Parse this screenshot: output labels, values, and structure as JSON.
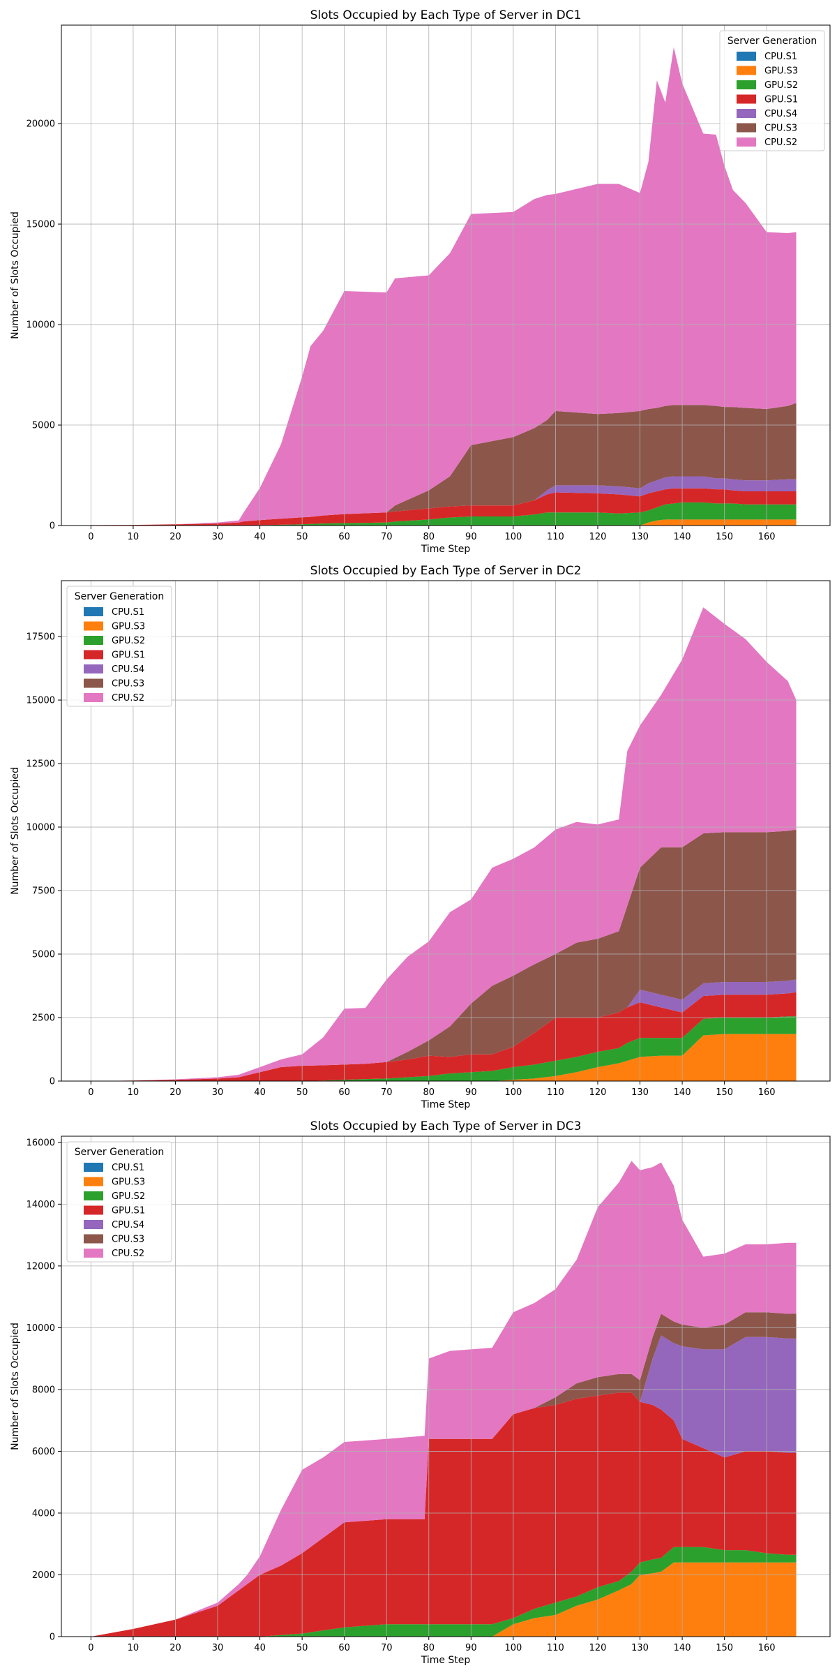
{
  "series_colors": {
    "CPU.S1": "#1f77b4",
    "GPU.S3": "#ff7f0e",
    "GPU.S2": "#2ca02c",
    "GPU.S1": "#d62728",
    "CPU.S4": "#9467bd",
    "CPU.S3": "#8c564b",
    "CPU.S2": "#e377c2"
  },
  "chart_data": [
    {
      "type": "area",
      "stacked": true,
      "title": "Slots Occupied by Each Type of Server in DC1",
      "xlabel": "Time Step",
      "ylabel": "Number of Slots Occupied",
      "xlim": [
        -7,
        175
      ],
      "ylim": [
        0,
        24900
      ],
      "xticks": [
        0,
        10,
        20,
        30,
        40,
        50,
        60,
        70,
        80,
        90,
        100,
        110,
        120,
        130,
        140,
        150,
        160
      ],
      "yticks": [
        0,
        5000,
        10000,
        15000,
        20000
      ],
      "grid": true,
      "legend": {
        "title": "Server Generation",
        "placement": "upper right"
      },
      "x": [
        0,
        10,
        20,
        30,
        35,
        36,
        40,
        45,
        50,
        52,
        55,
        60,
        70,
        72,
        80,
        85,
        90,
        100,
        105,
        108,
        110,
        120,
        125,
        130,
        132,
        134,
        136,
        138,
        140,
        145,
        148,
        150,
        152,
        155,
        160,
        165,
        167
      ],
      "series": [
        {
          "name": "CPU.S1",
          "values": [
            0,
            0,
            0,
            0,
            0,
            0,
            0,
            0,
            0,
            0,
            0,
            0,
            0,
            0,
            0,
            0,
            0,
            0,
            0,
            0,
            0,
            0,
            0,
            0,
            0,
            0,
            0,
            0,
            0,
            0,
            0,
            0,
            0,
            0,
            0,
            0,
            0
          ]
        },
        {
          "name": "GPU.S3",
          "values": [
            0,
            0,
            0,
            0,
            0,
            0,
            0,
            0,
            0,
            0,
            0,
            0,
            0,
            0,
            0,
            0,
            0,
            0,
            0,
            0,
            0,
            0,
            0,
            0,
            150,
            250,
            300,
            300,
            300,
            300,
            300,
            300,
            300,
            300,
            300,
            300,
            300
          ]
        },
        {
          "name": "GPU.S2",
          "values": [
            0,
            0,
            0,
            0,
            0,
            0,
            20,
            40,
            60,
            80,
            100,
            120,
            150,
            200,
            300,
            400,
            450,
            450,
            550,
            650,
            650,
            650,
            600,
            650,
            600,
            650,
            750,
            800,
            850,
            850,
            800,
            800,
            800,
            750,
            750,
            750,
            750
          ]
        },
        {
          "name": "GPU.S1",
          "values": [
            20,
            30,
            60,
            100,
            150,
            200,
            250,
            300,
            350,
            350,
            400,
            450,
            500,
            500,
            550,
            550,
            550,
            550,
            700,
            900,
            1000,
            950,
            950,
            800,
            850,
            800,
            750,
            750,
            700,
            700,
            700,
            700,
            650,
            650,
            650,
            650,
            650
          ]
        },
        {
          "name": "CPU.S4",
          "values": [
            0,
            0,
            0,
            0,
            0,
            0,
            0,
            0,
            0,
            0,
            0,
            0,
            0,
            0,
            0,
            0,
            0,
            0,
            0,
            200,
            350,
            400,
            400,
            400,
            500,
            550,
            600,
            600,
            600,
            600,
            550,
            550,
            550,
            550,
            550,
            600,
            600
          ]
        },
        {
          "name": "CPU.S3",
          "values": [
            0,
            0,
            0,
            0,
            0,
            0,
            0,
            0,
            0,
            0,
            0,
            0,
            0,
            300,
            900,
            1500,
            3000,
            3400,
            3600,
            3500,
            3700,
            3550,
            3650,
            3850,
            3700,
            3600,
            3550,
            3550,
            3550,
            3550,
            3600,
            3550,
            3600,
            3600,
            3550,
            3650,
            3800
          ]
        },
        {
          "name": "CPU.S2",
          "values": [
            0,
            0,
            0,
            50,
            100,
            400,
            1600,
            3700,
            7000,
            8500,
            9200,
            11100,
            10950,
            11300,
            10700,
            11100,
            11500,
            11200,
            11400,
            11200,
            10800,
            11450,
            11400,
            10850,
            12300,
            16300,
            15100,
            17800,
            16000,
            13500,
            13500,
            12000,
            10800,
            10200,
            8800,
            8600,
            8500
          ]
        }
      ]
    },
    {
      "type": "area",
      "stacked": true,
      "title": "Slots Occupied by Each Type of Server in DC2",
      "xlabel": "Time Step",
      "ylabel": "Number of Slots Occupied",
      "xlim": [
        -7,
        175
      ],
      "ylim": [
        0,
        19700
      ],
      "xticks": [
        0,
        10,
        20,
        30,
        40,
        50,
        60,
        70,
        80,
        90,
        100,
        110,
        120,
        130,
        140,
        150,
        160
      ],
      "yticks": [
        0,
        2500,
        5000,
        7500,
        10000,
        12500,
        15000,
        17500
      ],
      "grid": true,
      "legend": {
        "title": "Server Generation",
        "placement": "upper left"
      },
      "x": [
        0,
        10,
        20,
        30,
        35,
        40,
        45,
        50,
        55,
        60,
        65,
        70,
        75,
        80,
        85,
        90,
        95,
        100,
        105,
        110,
        115,
        120,
        125,
        127,
        130,
        135,
        140,
        145,
        150,
        155,
        160,
        165,
        167
      ],
      "series": [
        {
          "name": "CPU.S1",
          "values": [
            0,
            0,
            0,
            0,
            0,
            0,
            0,
            0,
            0,
            0,
            0,
            0,
            0,
            0,
            0,
            0,
            0,
            0,
            0,
            0,
            0,
            0,
            0,
            0,
            0,
            0,
            0,
            0,
            0,
            0,
            0,
            0,
            0
          ]
        },
        {
          "name": "GPU.S3",
          "values": [
            0,
            0,
            0,
            0,
            0,
            0,
            0,
            0,
            0,
            0,
            0,
            0,
            0,
            0,
            0,
            0,
            0,
            50,
            100,
            200,
            350,
            550,
            700,
            800,
            950,
            1000,
            1000,
            1800,
            1850,
            1850,
            1850,
            1850,
            1850
          ]
        },
        {
          "name": "GPU.S2",
          "values": [
            0,
            0,
            0,
            0,
            0,
            0,
            0,
            0,
            20,
            50,
            80,
            100,
            150,
            200,
            300,
            350,
            400,
            500,
            550,
            600,
            600,
            600,
            600,
            700,
            750,
            700,
            700,
            650,
            650,
            650,
            650,
            700,
            700
          ]
        },
        {
          "name": "GPU.S1",
          "values": [
            0,
            20,
            50,
            100,
            150,
            350,
            550,
            600,
            600,
            600,
            600,
            650,
            700,
            800,
            650,
            700,
            650,
            800,
            1250,
            1700,
            1550,
            1350,
            1400,
            1400,
            1400,
            1200,
            1000,
            900,
            900,
            900,
            900,
            900,
            950
          ]
        },
        {
          "name": "CPU.S4",
          "values": [
            0,
            0,
            0,
            0,
            0,
            0,
            0,
            0,
            0,
            0,
            0,
            0,
            0,
            0,
            0,
            0,
            0,
            0,
            0,
            0,
            0,
            0,
            0,
            0,
            500,
            500,
            500,
            500,
            500,
            500,
            500,
            500,
            500
          ]
        },
        {
          "name": "CPU.S3",
          "values": [
            0,
            0,
            0,
            0,
            0,
            0,
            0,
            0,
            0,
            0,
            0,
            0,
            300,
            600,
            1200,
            2000,
            2700,
            2800,
            2700,
            2500,
            2950,
            3100,
            3200,
            4000,
            4800,
            5800,
            6000,
            5900,
            5900,
            5900,
            5900,
            5900,
            5900
          ]
        },
        {
          "name": "CPU.S2",
          "values": [
            0,
            0,
            20,
            50,
            100,
            200,
            300,
            450,
            1100,
            2200,
            2200,
            3250,
            3750,
            3900,
            4500,
            4100,
            4650,
            4600,
            4600,
            4900,
            4750,
            4500,
            4400,
            6100,
            5600,
            6000,
            7400,
            8900,
            8200,
            7600,
            6700,
            5900,
            5100
          ]
        }
      ]
    },
    {
      "type": "area",
      "stacked": true,
      "title": "Slots Occupied by Each Type of Server in DC3",
      "xlabel": "Time Step",
      "ylabel": "Number of Slots Occupied",
      "xlim": [
        -7,
        175
      ],
      "ylim": [
        0,
        16200
      ],
      "xticks": [
        0,
        10,
        20,
        30,
        40,
        50,
        60,
        70,
        80,
        90,
        100,
        110,
        120,
        130,
        140,
        150,
        160
      ],
      "yticks": [
        0,
        2000,
        4000,
        6000,
        8000,
        10000,
        12000,
        14000,
        16000
      ],
      "grid": true,
      "legend": {
        "title": "Server Generation",
        "placement": "upper left"
      },
      "x": [
        0,
        10,
        20,
        30,
        35,
        37,
        40,
        45,
        50,
        55,
        60,
        70,
        79,
        80,
        85,
        90,
        95,
        100,
        105,
        110,
        115,
        120,
        125,
        128,
        130,
        133,
        135,
        138,
        140,
        145,
        150,
        155,
        160,
        165,
        167
      ],
      "series": [
        {
          "name": "CPU.S1",
          "values": [
            0,
            0,
            0,
            0,
            0,
            0,
            0,
            0,
            0,
            0,
            0,
            0,
            0,
            0,
            0,
            0,
            0,
            0,
            0,
            0,
            0,
            0,
            0,
            0,
            0,
            0,
            0,
            0,
            0,
            0,
            0,
            0,
            0,
            0,
            0
          ]
        },
        {
          "name": "GPU.S3",
          "values": [
            0,
            0,
            0,
            0,
            0,
            0,
            0,
            0,
            0,
            0,
            0,
            0,
            0,
            0,
            0,
            0,
            0,
            400,
            600,
            700,
            1000,
            1200,
            1500,
            1700,
            2000,
            2050,
            2100,
            2400,
            2400,
            2400,
            2400,
            2400,
            2400,
            2400,
            2400
          ]
        },
        {
          "name": "GPU.S2",
          "values": [
            0,
            0,
            0,
            0,
            0,
            0,
            0,
            50,
            100,
            200,
            300,
            400,
            400,
            400,
            400,
            400,
            400,
            200,
            300,
            400,
            300,
            400,
            300,
            400,
            400,
            450,
            450,
            500,
            500,
            500,
            400,
            400,
            300,
            250,
            250
          ]
        },
        {
          "name": "GPU.S1",
          "values": [
            0,
            250,
            550,
            1000,
            1500,
            1700,
            2000,
            2250,
            2600,
            3000,
            3400,
            3400,
            3400,
            6000,
            6000,
            6000,
            6000,
            6600,
            6500,
            6400,
            6400,
            6200,
            6100,
            5800,
            5200,
            5000,
            4800,
            4100,
            3500,
            3200,
            3000,
            3200,
            3300,
            3300,
            3300
          ]
        },
        {
          "name": "CPU.S4",
          "values": [
            0,
            0,
            0,
            0,
            0,
            0,
            0,
            0,
            0,
            0,
            0,
            0,
            0,
            0,
            0,
            0,
            0,
            0,
            0,
            0,
            0,
            0,
            0,
            0,
            0,
            1500,
            2400,
            2500,
            3000,
            3200,
            3500,
            3700,
            3700,
            3700,
            3700
          ]
        },
        {
          "name": "CPU.S3",
          "values": [
            0,
            0,
            0,
            0,
            0,
            0,
            0,
            0,
            0,
            0,
            0,
            0,
            0,
            0,
            0,
            0,
            0,
            0,
            0,
            250,
            500,
            600,
            600,
            600,
            700,
            700,
            700,
            700,
            700,
            700,
            800,
            800,
            800,
            800,
            800
          ]
        },
        {
          "name": "CPU.S2",
          "values": [
            0,
            0,
            0,
            100,
            200,
            300,
            600,
            1800,
            2700,
            2600,
            2600,
            2600,
            2700,
            2600,
            2850,
            2900,
            2950,
            3300,
            3400,
            3500,
            4000,
            5500,
            6200,
            6900,
            6800,
            5500,
            4900,
            4400,
            3400,
            2300,
            2300,
            2200,
            2200,
            2300,
            2300
          ]
        }
      ]
    }
  ]
}
